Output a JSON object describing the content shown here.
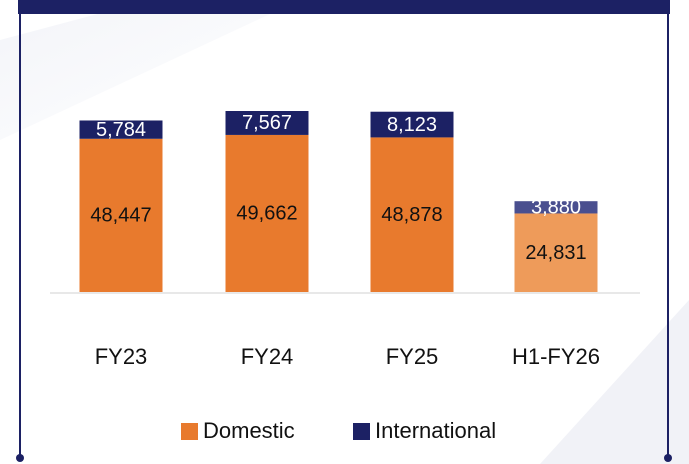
{
  "chart_data": {
    "type": "stacked-bar",
    "categories": [
      "FY23",
      "FY24",
      "FY25",
      "H1-FY26"
    ],
    "series": [
      {
        "name": "Domestic",
        "color": "#e87a2d",
        "colors": [
          "#e87a2d",
          "#e87a2d",
          "#e87a2d",
          "#ee9b5a"
        ],
        "values": [
          48447,
          49662,
          48878,
          24831
        ],
        "value_labels": [
          "48,447",
          "49,662",
          "48,878",
          "24,831"
        ]
      },
      {
        "name": "International",
        "color": "#1c2164",
        "colors": [
          "#1c2164",
          "#1c2164",
          "#1c2164",
          "#4a4f8f"
        ],
        "values": [
          5784,
          7567,
          8123,
          3880
        ],
        "value_labels": [
          "5,784",
          "7,567",
          "8,123",
          "3,880"
        ]
      }
    ],
    "legend": "bottom"
  }
}
